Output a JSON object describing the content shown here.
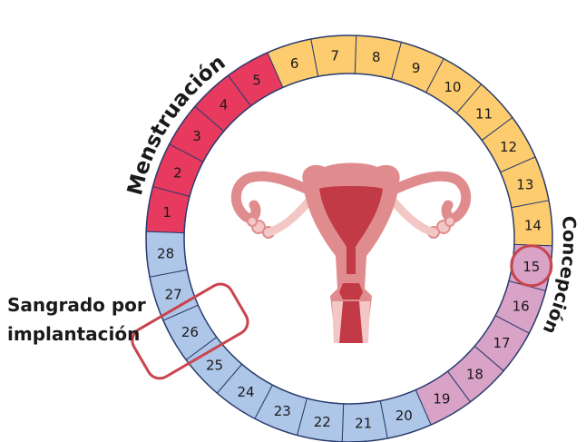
{
  "diagram": {
    "days": [
      "1",
      "2",
      "3",
      "4",
      "5",
      "6",
      "7",
      "8",
      "9",
      "10",
      "11",
      "12",
      "13",
      "14",
      "15",
      "16",
      "17",
      "18",
      "19",
      "20",
      "21",
      "22",
      "23",
      "24",
      "25",
      "26",
      "27",
      "28"
    ],
    "phases": {
      "menstruacion": {
        "title": "Menstruación",
        "days": [
          1,
          5
        ],
        "color": "#e8395f"
      },
      "folicular": {
        "days": [
          6,
          14
        ],
        "color": "#fdcc6e"
      },
      "luteal": {
        "days": [
          15,
          19
        ],
        "color": "#d9a2c7"
      },
      "tardia": {
        "days": [
          20,
          28
        ],
        "color": "#aec6e8"
      }
    },
    "concepcion": {
      "title": "Concepción",
      "day": 15,
      "highlight_color": "#c9444e"
    },
    "sangrado": {
      "line1": "Sangrado por",
      "line2": "implantación",
      "days": [
        25,
        27
      ],
      "highlight_color": "#c9444e"
    },
    "colors": {
      "ring_outline": "#2b3d6e",
      "uterus_outer": "#e08c8e",
      "uterus_inner": "#c23a45",
      "uterus_light": "#f3c7c6"
    }
  }
}
